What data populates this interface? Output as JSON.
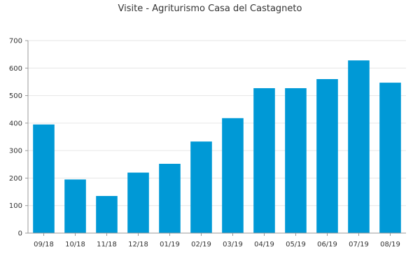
{
  "chart_data": {
    "type": "bar",
    "title": "Visite - Agriturismo Casa del Castagneto",
    "xlabel": "",
    "ylabel": "",
    "categories": [
      "09/18",
      "10/18",
      "11/18",
      "12/18",
      "01/19",
      "02/19",
      "03/19",
      "04/19",
      "05/19",
      "06/19",
      "07/19",
      "08/19"
    ],
    "values": [
      395,
      195,
      135,
      220,
      252,
      333,
      418,
      527,
      527,
      560,
      628,
      547
    ],
    "ylim": [
      0,
      700
    ],
    "yticks": [
      0,
      100,
      200,
      300,
      400,
      500,
      600,
      700
    ],
    "grid": true,
    "legend": "none",
    "bar_color": "#0099d6"
  }
}
